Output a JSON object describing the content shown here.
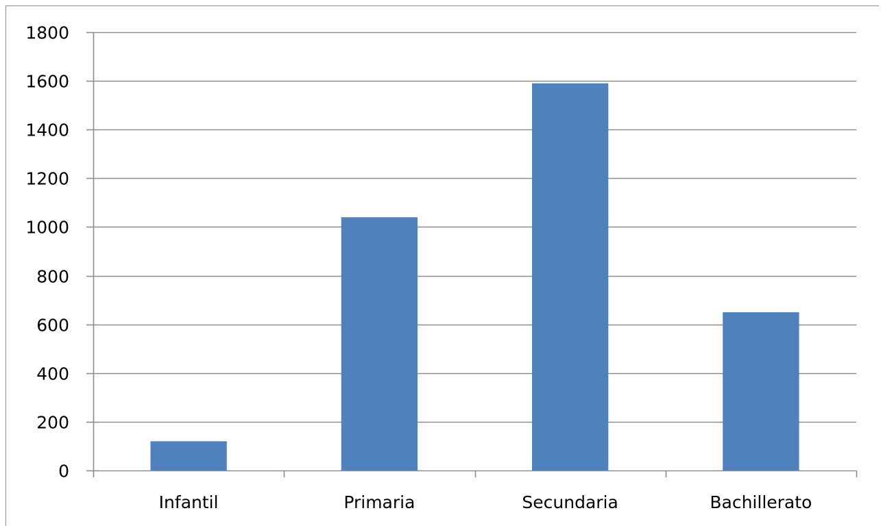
{
  "chart_data": {
    "type": "bar",
    "title": "",
    "xlabel": "",
    "ylabel": "",
    "categories": [
      "Infantil",
      "Primaria",
      "Secundaria",
      "Bachillerato"
    ],
    "values": [
      120,
      1040,
      1590,
      650
    ],
    "ylim": [
      0,
      1800
    ],
    "yticks": [
      0,
      200,
      400,
      600,
      800,
      1000,
      1200,
      1400,
      1600,
      1800
    ],
    "grid": true,
    "legend": "none",
    "colors": {
      "bar": "#4F81BD",
      "grid": "#8C8C8C",
      "axis": "#8C8C8C"
    }
  }
}
